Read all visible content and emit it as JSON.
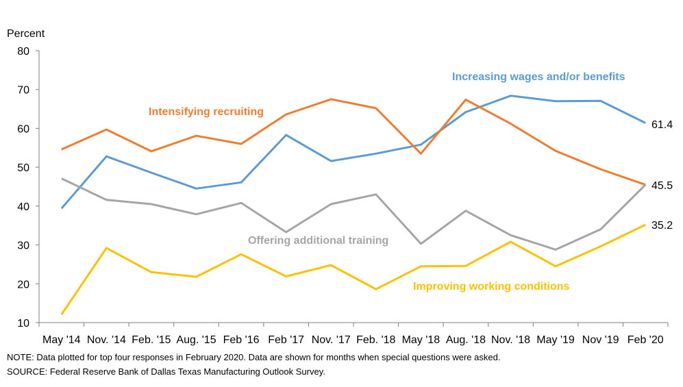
{
  "chart_data": {
    "type": "line",
    "ylabel": "Percent",
    "ylim": [
      10,
      80
    ],
    "yticks": [
      10,
      20,
      30,
      40,
      50,
      60,
      70,
      80
    ],
    "categories": [
      "May '14",
      "Nov. '14",
      "Feb. '15",
      "Aug. '15",
      "Feb '16",
      "Feb '17",
      "Nov. '17",
      "Feb. '18",
      "May '18",
      "Aug. '18",
      "Nov. '18",
      "May '19",
      "Nov '19",
      "Feb '20"
    ],
    "grid": false,
    "series": [
      {
        "name": "Increasing wages and/or benefits",
        "color": "#5B9BD5",
        "values": [
          39.4,
          52.8,
          48.6,
          44.5,
          46.1,
          58.3,
          51.6,
          53.5,
          55.8,
          64.2,
          68.4,
          67.0,
          67.1,
          61.4
        ],
        "end_label": "61.4"
      },
      {
        "name": "Intensifying recruiting",
        "color": "#ED7D31",
        "values": [
          54.6,
          59.7,
          54.1,
          58.1,
          56.0,
          63.6,
          67.5,
          65.2,
          53.5,
          67.4,
          61.2,
          54.2,
          49.5,
          45.5
        ],
        "end_label": "45.5"
      },
      {
        "name": "Offering additional training",
        "color": "#A5A5A5",
        "values": [
          47.1,
          41.6,
          40.5,
          37.9,
          40.8,
          33.3,
          40.5,
          43.0,
          30.3,
          38.8,
          32.5,
          28.8,
          34.0,
          45.5
        ],
        "end_label": ""
      },
      {
        "name": "Improving working conditions",
        "color": "#FFC000",
        "values": [
          12.1,
          29.2,
          23.0,
          21.8,
          27.6,
          21.9,
          24.8,
          18.6,
          24.5,
          24.6,
          30.8,
          24.5,
          29.6,
          35.2
        ],
        "end_label": "35.2"
      }
    ]
  },
  "notes": {
    "note": "NOTE: Data plotted for top four responses in February 2020. Data are shown for months when special questions were asked.",
    "source": "SOURCE: Federal Reserve Bank of Dallas Texas Manufacturing Outlook Survey."
  }
}
